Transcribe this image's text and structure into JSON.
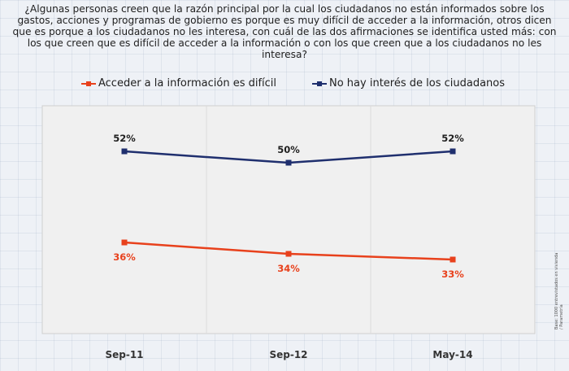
{
  "question": "¿Algunas personas creen que la razón principal por la cual los ciudadanos no están informados sobre los gastos, acciones y programas de gobierno es porque es muy difícil de acceder a la información, otros dicen que es porque a los ciudadanos no les interesa, con cuál de las dos afirmaciones se identifica usted más: con los que creen que es difícil de acceder a la información o con los que creen que a los ciudadanos no les interesa?",
  "side_note": "Base: 1000 entrevistados en vivienda / Parametría",
  "colors": {
    "orange": "#e8411c",
    "navy": "#1f2f6e"
  },
  "chart_data": {
    "type": "line",
    "x": [
      "Sep-11",
      "Sep-12",
      "May-14"
    ],
    "series": [
      {
        "name": "Acceder a la información es difícil",
        "values": [
          36,
          34,
          33
        ],
        "labels": [
          "36%",
          "34%",
          "33%"
        ],
        "color": "#e8411c"
      },
      {
        "name": "No hay interés de los ciudadanos",
        "values": [
          52,
          50,
          52
        ],
        "labels": [
          "52%",
          "50%",
          "52%"
        ],
        "color": "#1f2f6e"
      }
    ],
    "ylim": [
      20,
      60
    ],
    "grid": "vertical",
    "legend": "top"
  }
}
